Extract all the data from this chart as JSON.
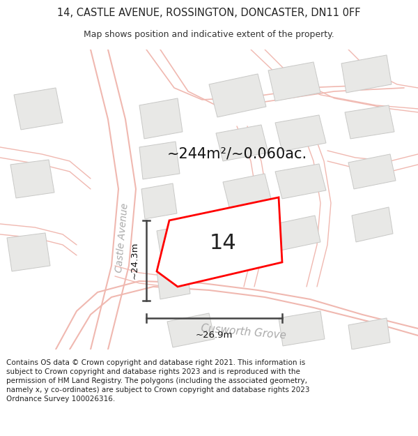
{
  "title_line1": "14, CASTLE AVENUE, ROSSINGTON, DONCASTER, DN11 0FF",
  "title_line2": "Map shows position and indicative extent of the property.",
  "footer_text": "Contains OS data © Crown copyright and database right 2021. This information is subject to Crown copyright and database rights 2023 and is reproduced with the permission of HM Land Registry. The polygons (including the associated geometry, namely x, y co-ordinates) are subject to Crown copyright and database rights 2023 Ordnance Survey 100026316.",
  "area_label": "~244m²/~0.060ac.",
  "number_label": "14",
  "width_label": "~26.9m",
  "height_label": "~24.3m",
  "street_label_1": "Castle Avenue",
  "street_label_2": "Cusworth Grove",
  "map_bg": "#f5f4f2",
  "road_color": "#f0b8b0",
  "building_color": "#e8e8e6",
  "building_outline": "#c8c8c6",
  "property_fill": "#ffffff",
  "property_edge": "#ff0000",
  "dim_line_color": "#444444",
  "title_fontsize": 10.5,
  "subtitle_fontsize": 9.0,
  "footer_fontsize": 7.5,
  "area_fontsize": 15,
  "number_fontsize": 22,
  "street_fontsize": 10,
  "dim_fontsize": 9.5
}
